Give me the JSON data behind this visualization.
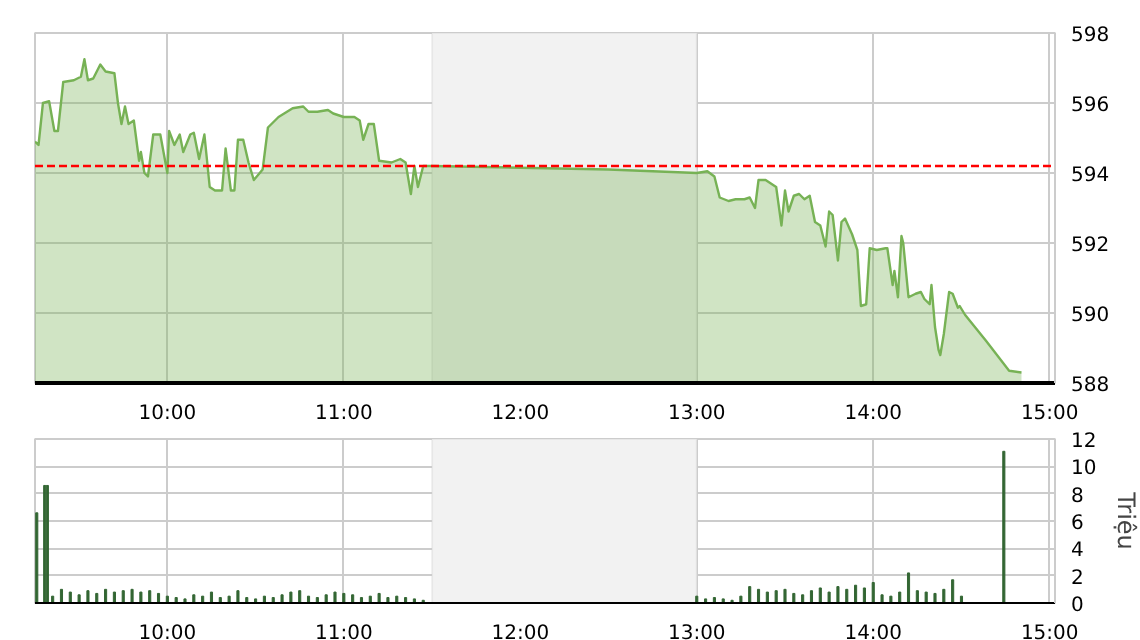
{
  "chart_data": [
    {
      "type": "area",
      "xlim": [
        9.25,
        15.03
      ],
      "ylim": [
        588,
        598
      ],
      "yticks": [
        588,
        590,
        592,
        594,
        596,
        598
      ],
      "xticks": [
        {
          "value": 10,
          "label": "10:00"
        },
        {
          "value": 11,
          "label": "11:00"
        },
        {
          "value": 12,
          "label": "12:00"
        },
        {
          "value": 13,
          "label": "13:00"
        },
        {
          "value": 14,
          "label": "14:00"
        },
        {
          "value": 15,
          "label": "15:00"
        }
      ],
      "grid": true,
      "bands": [
        {
          "axis": "x",
          "from": 11.5,
          "to": 13.0,
          "color": "#f2f2f2"
        }
      ],
      "ref_lines": [
        {
          "axis": "y",
          "value": 594.2,
          "color": "#ff0000",
          "line_style": "dashed"
        }
      ],
      "series": [
        {
          "color": "#77b255",
          "x": [
            9.25,
            9.27,
            9.295,
            9.33,
            9.36,
            9.38,
            9.41,
            9.47,
            9.51,
            9.53,
            9.55,
            9.58,
            9.62,
            9.65,
            9.7,
            9.72,
            9.74,
            9.76,
            9.78,
            9.81,
            9.84,
            9.85,
            9.87,
            9.89,
            9.92,
            9.96,
            10.0,
            10.01,
            10.04,
            10.07,
            10.09,
            10.13,
            10.15,
            10.18,
            10.21,
            10.24,
            10.27,
            10.31,
            10.33,
            10.36,
            10.38,
            10.4,
            10.43,
            10.46,
            10.49,
            10.54,
            10.57,
            10.63,
            10.71,
            10.77,
            10.8,
            10.85,
            10.91,
            10.94,
            11.0,
            11.06,
            11.09,
            11.11,
            11.14,
            11.17,
            11.2,
            11.27,
            11.32,
            11.35,
            11.38,
            11.4,
            11.42,
            11.45,
            11.5,
            12.0,
            12.5,
            13.0,
            13.06,
            13.1,
            13.13,
            13.18,
            13.22,
            13.27,
            13.3,
            13.33,
            13.35,
            13.39,
            13.42,
            13.45,
            13.48,
            13.5,
            13.52,
            13.55,
            13.58,
            13.61,
            13.64,
            13.67,
            13.7,
            13.73,
            13.75,
            13.77,
            13.8,
            13.82,
            13.84,
            13.88,
            13.91,
            13.93,
            13.96,
            13.98,
            14.02,
            14.07,
            14.08,
            14.11,
            14.12,
            14.14,
            14.16,
            14.17,
            14.2,
            14.24,
            14.27,
            14.29,
            14.32,
            14.33,
            14.35,
            14.37,
            14.38,
            14.4,
            14.43,
            14.45,
            14.48,
            14.49,
            14.52,
            14.64,
            14.77,
            14.84
          ],
          "values": [
            594.9,
            594.8,
            596.0,
            596.05,
            595.2,
            595.2,
            596.6,
            596.65,
            596.75,
            597.25,
            596.65,
            596.7,
            597.1,
            596.9,
            596.85,
            596.0,
            595.4,
            595.9,
            595.4,
            595.5,
            594.35,
            594.6,
            594.0,
            593.9,
            595.1,
            595.1,
            594.0,
            595.2,
            594.8,
            595.1,
            594.6,
            595.1,
            595.15,
            594.4,
            595.1,
            593.6,
            593.5,
            593.5,
            594.7,
            593.5,
            593.5,
            594.95,
            594.95,
            594.3,
            593.8,
            594.1,
            595.3,
            595.6,
            595.85,
            595.9,
            595.75,
            595.75,
            595.8,
            595.7,
            595.6,
            595.6,
            595.5,
            594.95,
            595.4,
            595.4,
            594.35,
            594.3,
            594.4,
            594.3,
            593.4,
            594.2,
            593.6,
            594.2,
            594.2,
            594.15,
            594.1,
            594.0,
            594.05,
            593.9,
            593.3,
            593.2,
            593.25,
            593.25,
            593.3,
            593.0,
            593.8,
            593.8,
            593.7,
            593.6,
            592.5,
            593.5,
            592.9,
            593.35,
            593.4,
            593.25,
            593.35,
            592.6,
            592.5,
            591.9,
            592.9,
            592.8,
            591.5,
            592.6,
            592.7,
            592.25,
            591.8,
            590.2,
            590.25,
            591.85,
            591.8,
            591.85,
            591.85,
            590.8,
            591.2,
            590.45,
            592.2,
            592.0,
            590.45,
            590.55,
            590.6,
            590.4,
            590.25,
            590.8,
            589.6,
            588.95,
            588.8,
            589.4,
            590.6,
            590.55,
            590.15,
            590.2,
            589.95,
            589.2,
            588.35,
            588.3
          ]
        }
      ]
    },
    {
      "type": "bar",
      "xlim": [
        9.25,
        15.03
      ],
      "ylim": [
        0,
        12
      ],
      "yticks": [
        0,
        2,
        4,
        6,
        8,
        10,
        12
      ],
      "ylabel": "Triệu",
      "xticks": [
        {
          "value": 10,
          "label": "10:00"
        },
        {
          "value": 11,
          "label": "11:00"
        },
        {
          "value": 12,
          "label": "12:00"
        },
        {
          "value": 13,
          "label": "13:00"
        },
        {
          "value": 14,
          "label": "14:00"
        },
        {
          "value": 15,
          "label": "15:00"
        }
      ],
      "grid": true,
      "bands": [
        {
          "axis": "x",
          "from": 11.5,
          "to": 13.0,
          "color": "#f2f2f2"
        }
      ],
      "series": [
        {
          "color": "#336633",
          "x": [
            9.26,
            9.305,
            9.32,
            9.35,
            9.4,
            9.45,
            9.5,
            9.55,
            9.6,
            9.65,
            9.7,
            9.75,
            9.8,
            9.85,
            9.9,
            9.95,
            10.0,
            10.05,
            10.1,
            10.15,
            10.2,
            10.25,
            10.3,
            10.35,
            10.4,
            10.45,
            10.5,
            10.55,
            10.6,
            10.65,
            10.7,
            10.75,
            10.8,
            10.85,
            10.9,
            10.95,
            11.0,
            11.05,
            11.1,
            11.15,
            11.2,
            11.25,
            11.3,
            11.35,
            11.4,
            11.45,
            13.0,
            13.05,
            13.1,
            13.15,
            13.2,
            13.25,
            13.3,
            13.35,
            13.4,
            13.45,
            13.5,
            13.55,
            13.6,
            13.65,
            13.7,
            13.75,
            13.8,
            13.85,
            13.9,
            13.95,
            14.0,
            14.05,
            14.1,
            14.15,
            14.2,
            14.25,
            14.3,
            14.35,
            14.4,
            14.45,
            14.5,
            14.74
          ],
          "values": [
            6.6,
            8.6,
            8.6,
            0.5,
            1.0,
            0.8,
            0.6,
            0.9,
            0.7,
            1.0,
            0.8,
            0.9,
            1.0,
            0.8,
            0.9,
            0.7,
            0.5,
            0.4,
            0.3,
            0.6,
            0.5,
            0.8,
            0.4,
            0.5,
            0.9,
            0.4,
            0.3,
            0.5,
            0.4,
            0.6,
            0.8,
            0.9,
            0.5,
            0.4,
            0.6,
            0.8,
            0.7,
            0.6,
            0.4,
            0.5,
            0.7,
            0.4,
            0.5,
            0.4,
            0.3,
            0.2,
            0.5,
            0.3,
            0.4,
            0.3,
            0.2,
            0.5,
            1.2,
            1.0,
            0.8,
            0.9,
            1.0,
            0.7,
            0.6,
            0.9,
            1.1,
            0.8,
            1.2,
            1.0,
            1.3,
            1.1,
            1.5,
            0.6,
            0.5,
            0.8,
            2.2,
            0.9,
            0.8,
            0.7,
            1.0,
            1.7,
            0.5,
            11.1
          ]
        }
      ]
    }
  ]
}
